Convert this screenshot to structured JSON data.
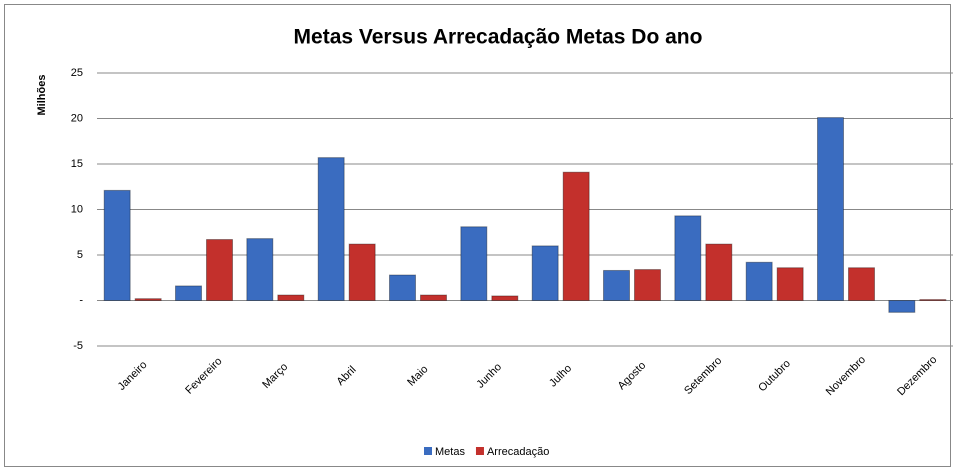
{
  "chart_data": {
    "type": "bar",
    "title": "Metas Versus Arrecadação Metas Do ano",
    "y_label": "Milhões",
    "categories": [
      "Janeiro",
      "Fevereiro",
      "Março",
      "Abril",
      "Maio",
      "Junho",
      "Julho",
      "Agosto",
      "Setembro",
      "Outubro",
      "Novembro",
      "Dezembro"
    ],
    "series": [
      {
        "name": "Metas",
        "color": "#3a6cc0",
        "values": [
          12.1,
          1.6,
          6.8,
          15.7,
          2.8,
          8.1,
          6.0,
          3.3,
          9.3,
          4.2,
          20.1,
          -1.3
        ]
      },
      {
        "name": "Arrecadação",
        "color": "#c3302c",
        "values": [
          0.2,
          6.7,
          0.6,
          6.2,
          0.6,
          0.5,
          14.1,
          3.4,
          6.2,
          3.6,
          3.6,
          0.1
        ]
      }
    ],
    "ylim": [
      -5,
      25
    ],
    "yticks": [
      -5,
      {
        "value": 0,
        "label": "-"
      },
      5,
      10,
      15,
      20,
      25
    ],
    "grid": true,
    "legend": "bottom"
  }
}
